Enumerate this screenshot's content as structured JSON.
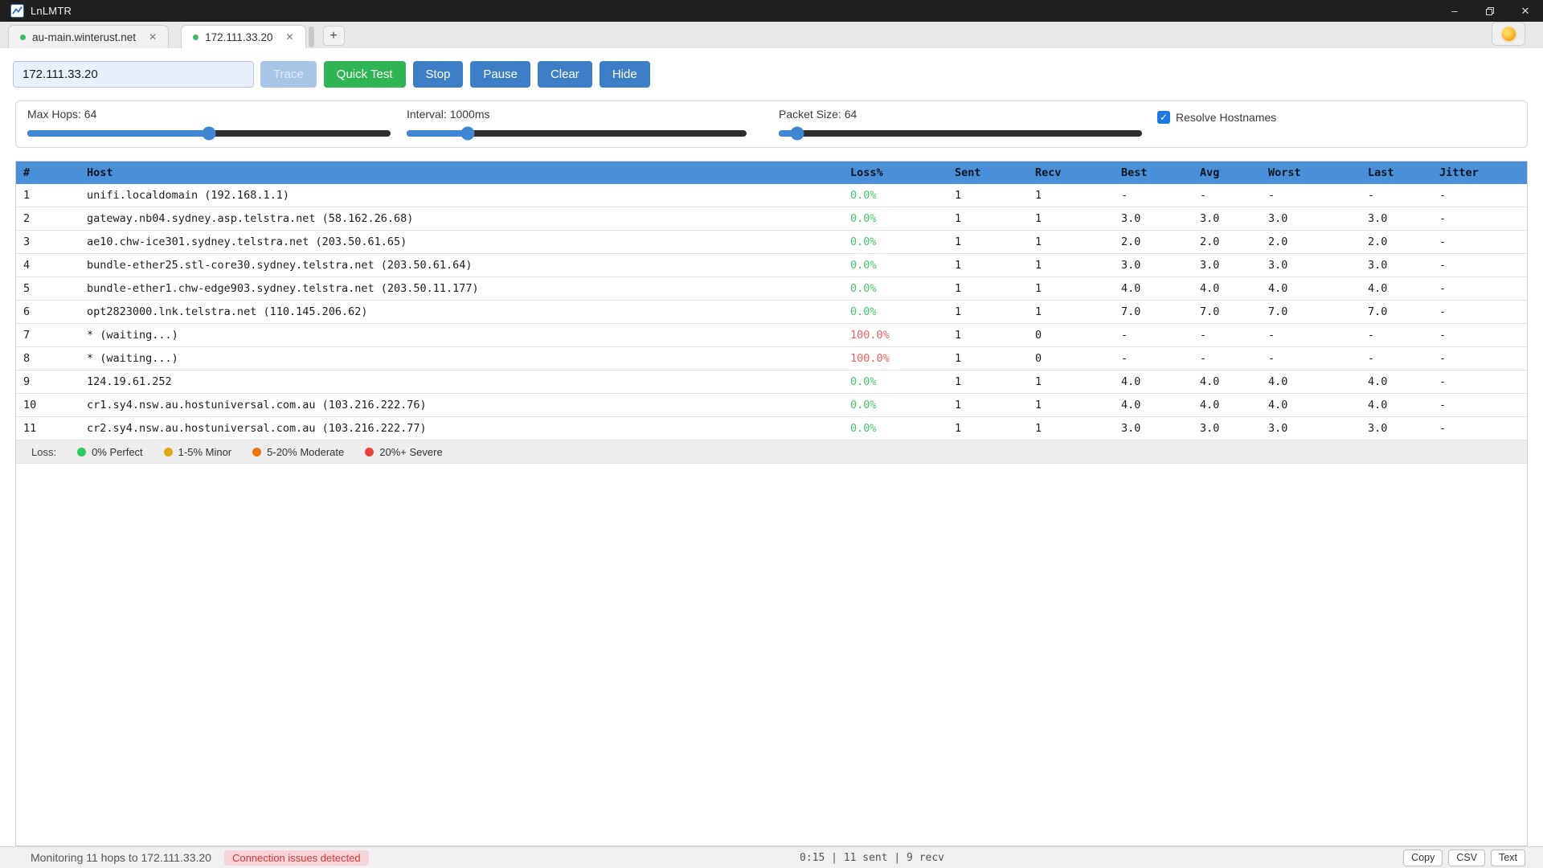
{
  "window": {
    "title": "LnLMTR",
    "controls": {
      "minimize": "–",
      "close": "✕"
    }
  },
  "tabs": [
    {
      "label": "au-main.winterust.net",
      "active": false,
      "close_label": "✕"
    },
    {
      "label": "172.111.33.20",
      "active": true,
      "close_label": "✕"
    }
  ],
  "new_tab_label": "+",
  "toolbar": {
    "target_value": "172.111.33.20",
    "trace_label": "Trace",
    "quick_test_label": "Quick Test",
    "stop_label": "Stop",
    "pause_label": "Pause",
    "clear_label": "Clear",
    "hide_label": "Hide"
  },
  "settings": {
    "max_hops": {
      "label": "Max Hops: 64",
      "value": 64,
      "fill_pct": 50
    },
    "interval": {
      "label": "Interval: 1000ms",
      "value": "1000ms",
      "fill_pct": 18
    },
    "packet_size": {
      "label": "Packet Size: 64",
      "value": 64,
      "fill_pct": 5
    },
    "resolve_hostnames": {
      "label": "Resolve Hostnames",
      "checked": true,
      "check_glyph": "✓"
    }
  },
  "table": {
    "columns": [
      "#",
      "Host",
      "Loss%",
      "Sent",
      "Recv",
      "Best",
      "Avg",
      "Worst",
      "Last",
      "Jitter"
    ],
    "rows": [
      {
        "num": "1",
        "host": "unifi.localdomain (192.168.1.1)",
        "loss": "0.0%",
        "loss_level": "ok",
        "sent": "1",
        "recv": "1",
        "best": "-",
        "avg": "-",
        "worst": "-",
        "last": "-",
        "jitter": "-"
      },
      {
        "num": "2",
        "host": "gateway.nb04.sydney.asp.telstra.net (58.162.26.68)",
        "loss": "0.0%",
        "loss_level": "ok",
        "sent": "1",
        "recv": "1",
        "best": "3.0",
        "avg": "3.0",
        "worst": "3.0",
        "last": "3.0",
        "jitter": "-"
      },
      {
        "num": "3",
        "host": "ae10.chw-ice301.sydney.telstra.net (203.50.61.65)",
        "loss": "0.0%",
        "loss_level": "ok",
        "sent": "1",
        "recv": "1",
        "best": "2.0",
        "avg": "2.0",
        "worst": "2.0",
        "last": "2.0",
        "jitter": "-"
      },
      {
        "num": "4",
        "host": "bundle-ether25.stl-core30.sydney.telstra.net (203.50.61.64)",
        "loss": "0.0%",
        "loss_level": "ok",
        "sent": "1",
        "recv": "1",
        "best": "3.0",
        "avg": "3.0",
        "worst": "3.0",
        "last": "3.0",
        "jitter": "-"
      },
      {
        "num": "5",
        "host": "bundle-ether1.chw-edge903.sydney.telstra.net (203.50.11.177)",
        "loss": "0.0%",
        "loss_level": "ok",
        "sent": "1",
        "recv": "1",
        "best": "4.0",
        "avg": "4.0",
        "worst": "4.0",
        "last": "4.0",
        "jitter": "-"
      },
      {
        "num": "6",
        "host": "opt2823000.lnk.telstra.net (110.145.206.62)",
        "loss": "0.0%",
        "loss_level": "ok",
        "sent": "1",
        "recv": "1",
        "best": "7.0",
        "avg": "7.0",
        "worst": "7.0",
        "last": "7.0",
        "jitter": "-"
      },
      {
        "num": "7",
        "host": "* (waiting...)",
        "loss": "100.0%",
        "loss_level": "bad",
        "sent": "1",
        "recv": "0",
        "best": "-",
        "avg": "-",
        "worst": "-",
        "last": "-",
        "jitter": "-"
      },
      {
        "num": "8",
        "host": "* (waiting...)",
        "loss": "100.0%",
        "loss_level": "bad",
        "sent": "1",
        "recv": "0",
        "best": "-",
        "avg": "-",
        "worst": "-",
        "last": "-",
        "jitter": "-"
      },
      {
        "num": "9",
        "host": "124.19.61.252",
        "loss": "0.0%",
        "loss_level": "ok",
        "sent": "1",
        "recv": "1",
        "best": "4.0",
        "avg": "4.0",
        "worst": "4.0",
        "last": "4.0",
        "jitter": "-"
      },
      {
        "num": "10",
        "host": "cr1.sy4.nsw.au.hostuniversal.com.au (103.216.222.76)",
        "loss": "0.0%",
        "loss_level": "ok",
        "sent": "1",
        "recv": "1",
        "best": "4.0",
        "avg": "4.0",
        "worst": "4.0",
        "last": "4.0",
        "jitter": "-"
      },
      {
        "num": "11",
        "host": "cr2.sy4.nsw.au.hostuniversal.com.au (103.216.222.77)",
        "loss": "0.0%",
        "loss_level": "ok",
        "sent": "1",
        "recv": "1",
        "best": "3.0",
        "avg": "3.0",
        "worst": "3.0",
        "last": "3.0",
        "jitter": "-"
      }
    ]
  },
  "legend": {
    "title": "Loss:",
    "items": [
      {
        "label": "0% Perfect",
        "color": "#2ecc5e"
      },
      {
        "label": "1-5% Minor",
        "color": "#e0a80f"
      },
      {
        "label": "5-20% Moderate",
        "color": "#f0720d"
      },
      {
        "label": "20%+ Severe",
        "color": "#e8413c"
      }
    ]
  },
  "statusbar": {
    "message": "Monitoring 11 hops to 172.111.33.20",
    "badge": "Connection issues detected",
    "counters": "0:15 | 11 sent | 9 recv",
    "copy_label": "Copy",
    "csv_label": "CSV",
    "text_label": "Text"
  },
  "colors": {
    "titlebar_bg": "#1f1f1f",
    "header_bg": "#4a90d9",
    "accent_blue": "#3d7ec6",
    "accent_green": "#2eb452",
    "loss_ok": "#44c767",
    "loss_bad": "#ee5f5f",
    "badge_bg": "#f6d3d7",
    "badge_text": "#cc3b37"
  }
}
